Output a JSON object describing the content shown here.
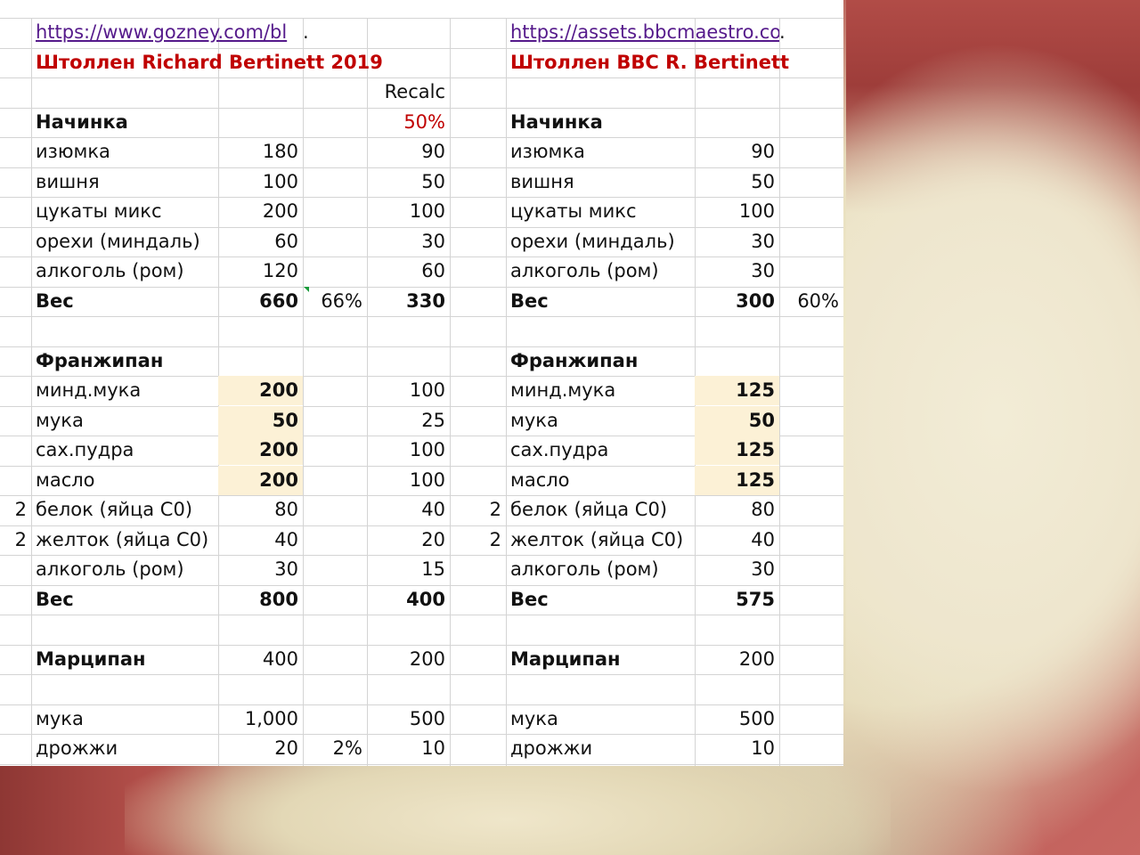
{
  "left": {
    "url": "https://www.gozney.com/bl",
    "url_dot": ".",
    "title": "Штоллен Richard Bertinett 2019",
    "recalc_label": "Recalc",
    "recalc_pct": "50%",
    "filling": {
      "header": "Начинка",
      "rows": [
        {
          "name": "изюмка",
          "v": "180",
          "r": "90"
        },
        {
          "name": "вишня",
          "v": "100",
          "r": "50"
        },
        {
          "name": "цукаты микс",
          "v": "200",
          "r": "100"
        },
        {
          "name": "орехи (миндаль)",
          "v": "60",
          "r": "30"
        },
        {
          "name": "алкоголь (ром)",
          "v": "120",
          "r": "60"
        }
      ],
      "total": {
        "name": "Вес",
        "v": "660",
        "pct": "66%",
        "r": "330"
      }
    },
    "frangipane": {
      "header": "Франжипан",
      "rows": [
        {
          "n": "",
          "name": "минд.мука",
          "v": "200",
          "r": "100",
          "hl": true
        },
        {
          "n": "",
          "name": "мука",
          "v": "50",
          "r": "25",
          "hl": true
        },
        {
          "n": "",
          "name": "сах.пудра",
          "v": "200",
          "r": "100",
          "hl": true
        },
        {
          "n": "",
          "name": "масло",
          "v": "200",
          "r": "100",
          "hl": true
        },
        {
          "n": "2",
          "name": "белок (яйца С0)",
          "v": "80",
          "r": "40",
          "hl": false
        },
        {
          "n": "2",
          "name": "желток (яйца С0)",
          "v": "40",
          "r": "20",
          "hl": false
        },
        {
          "n": "",
          "name": "алкоголь (ром)",
          "v": "30",
          "r": "15",
          "hl": false
        }
      ],
      "total": {
        "name": "Вес",
        "v": "800",
        "r": "400"
      }
    },
    "marzipan": {
      "name": "Марципан",
      "v": "400",
      "r": "200"
    },
    "flour": {
      "name": "мука",
      "v": "1,000",
      "r": "500"
    },
    "yeast": {
      "name": "дрожжи",
      "v": "20",
      "pct": "2%",
      "r": "10"
    }
  },
  "right": {
    "url": "https://assets.bbcmaestro.co",
    "url_dot": ".",
    "title": "Штоллен BBC R. Bertinett",
    "filling": {
      "header": "Начинка",
      "rows": [
        {
          "name": "изюмка",
          "v": "90"
        },
        {
          "name": "вишня",
          "v": "50"
        },
        {
          "name": "цукаты микс",
          "v": "100"
        },
        {
          "name": "орехи (миндаль)",
          "v": "30"
        },
        {
          "name": "алкоголь (ром)",
          "v": "30"
        }
      ],
      "total": {
        "name": "Вес",
        "v": "300",
        "pct": "60%"
      }
    },
    "frangipane": {
      "header": "Франжипан",
      "rows": [
        {
          "n": "",
          "name": "минд.мука",
          "v": "125",
          "hl": true
        },
        {
          "n": "",
          "name": "мука",
          "v": "50",
          "hl": true
        },
        {
          "n": "",
          "name": "сах.пудра",
          "v": "125",
          "hl": true
        },
        {
          "n": "",
          "name": "масло",
          "v": "125",
          "hl": true
        },
        {
          "n": "2",
          "name": "белок (яйца С0)",
          "v": "80",
          "hl": false
        },
        {
          "n": "2",
          "name": "желток (яйца С0)",
          "v": "40",
          "hl": false
        },
        {
          "n": "",
          "name": "алкоголь (ром)",
          "v": "30",
          "hl": false
        }
      ],
      "total": {
        "name": "Вес",
        "v": "575"
      }
    },
    "marzipan": {
      "name": "Марципан",
      "v": "200"
    },
    "flour": {
      "name": "мука",
      "v": "500"
    },
    "yeast": {
      "name": "дрожжи",
      "v": "10"
    }
  },
  "colors": {
    "title_red": "#c00000",
    "highlight": "#fcf1d6",
    "link": "#551a8b"
  }
}
